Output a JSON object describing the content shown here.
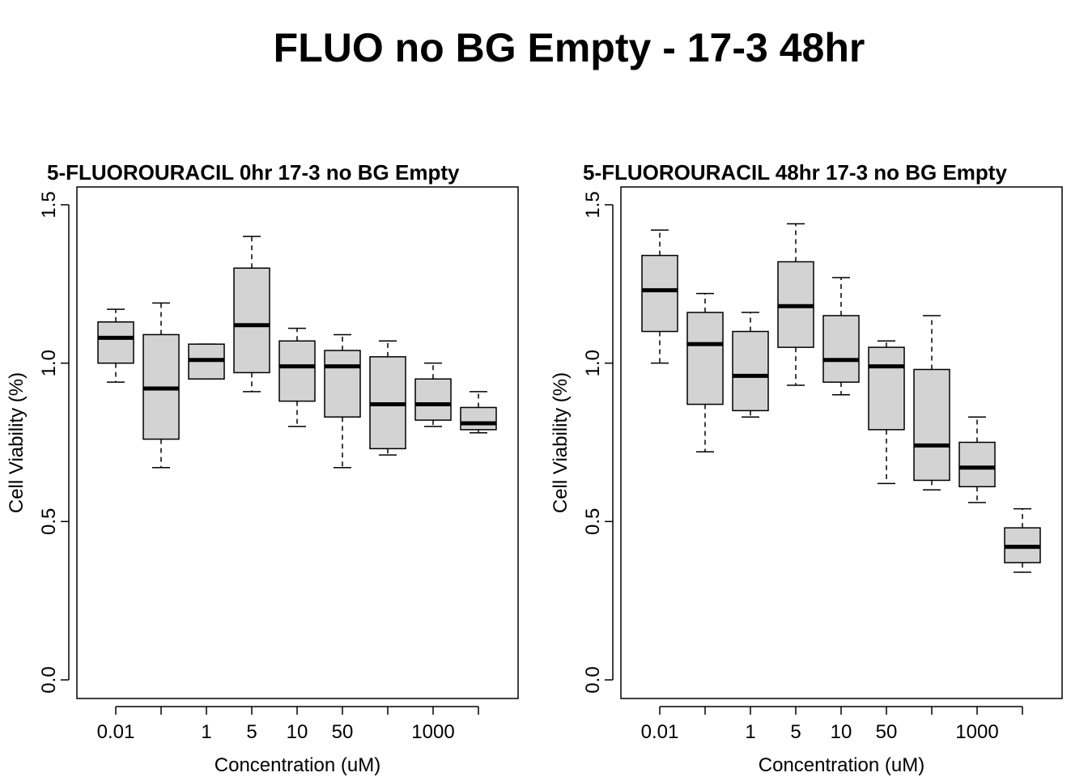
{
  "title": "FLUO no BG Empty - 17-3 48hr",
  "chart_data": [
    {
      "type": "box",
      "title": "5-FLUOROURACIL 0hr 17-3 no BG Empty",
      "xlabel": "Concentration (uM)",
      "ylabel": "Cell Viability (%)",
      "ylim": [
        0,
        1.5
      ],
      "yticks": [
        "0.0",
        "0.5",
        "1.0",
        "1.5"
      ],
      "categories": [
        "0.01",
        "",
        "1",
        "5",
        "10",
        "50",
        "",
        "1000",
        ""
      ],
      "boxes": [
        {
          "min": 0.94,
          "q1": 1.0,
          "median": 1.08,
          "q3": 1.13,
          "max": 1.17
        },
        {
          "min": 0.67,
          "q1": 0.76,
          "median": 0.92,
          "q3": 1.09,
          "max": 1.19
        },
        {
          "min": 0.95,
          "q1": 0.95,
          "median": 1.01,
          "q3": 1.06,
          "max": 1.06
        },
        {
          "min": 0.91,
          "q1": 0.97,
          "median": 1.12,
          "q3": 1.3,
          "max": 1.4
        },
        {
          "min": 0.8,
          "q1": 0.88,
          "median": 0.99,
          "q3": 1.07,
          "max": 1.11
        },
        {
          "min": 0.67,
          "q1": 0.83,
          "median": 0.99,
          "q3": 1.04,
          "max": 1.09
        },
        {
          "min": 0.71,
          "q1": 0.73,
          "median": 0.87,
          "q3": 1.02,
          "max": 1.07
        },
        {
          "min": 0.8,
          "q1": 0.82,
          "median": 0.87,
          "q3": 0.95,
          "max": 1.0
        },
        {
          "min": 0.78,
          "q1": 0.79,
          "median": 0.81,
          "q3": 0.86,
          "max": 0.91
        }
      ]
    },
    {
      "type": "box",
      "title": "5-FLUOROURACIL 48hr 17-3 no BG Empty",
      "xlabel": "Concentration (uM)",
      "ylabel": "Cell Viability (%)",
      "ylim": [
        0,
        1.5
      ],
      "yticks": [
        "0.0",
        "0.5",
        "1.0",
        "1.5"
      ],
      "categories": [
        "0.01",
        "",
        "1",
        "5",
        "10",
        "50",
        "",
        "1000",
        ""
      ],
      "boxes": [
        {
          "min": 1.0,
          "q1": 1.1,
          "median": 1.23,
          "q3": 1.34,
          "max": 1.42
        },
        {
          "min": 0.72,
          "q1": 0.87,
          "median": 1.06,
          "q3": 1.16,
          "max": 1.22
        },
        {
          "min": 0.83,
          "q1": 0.85,
          "median": 0.96,
          "q3": 1.1,
          "max": 1.16
        },
        {
          "min": 0.93,
          "q1": 1.05,
          "median": 1.18,
          "q3": 1.32,
          "max": 1.44
        },
        {
          "min": 0.9,
          "q1": 0.94,
          "median": 1.01,
          "q3": 1.15,
          "max": 1.27
        },
        {
          "min": 0.62,
          "q1": 0.79,
          "median": 0.99,
          "q3": 1.05,
          "max": 1.07
        },
        {
          "min": 0.6,
          "q1": 0.63,
          "median": 0.74,
          "q3": 0.98,
          "max": 1.15
        },
        {
          "min": 0.56,
          "q1": 0.61,
          "median": 0.67,
          "q3": 0.75,
          "max": 0.83
        },
        {
          "min": 0.34,
          "q1": 0.37,
          "median": 0.42,
          "q3": 0.48,
          "max": 0.54
        }
      ]
    }
  ],
  "colors": {
    "box_fill": "#d3d3d3",
    "stroke": "#000000"
  }
}
